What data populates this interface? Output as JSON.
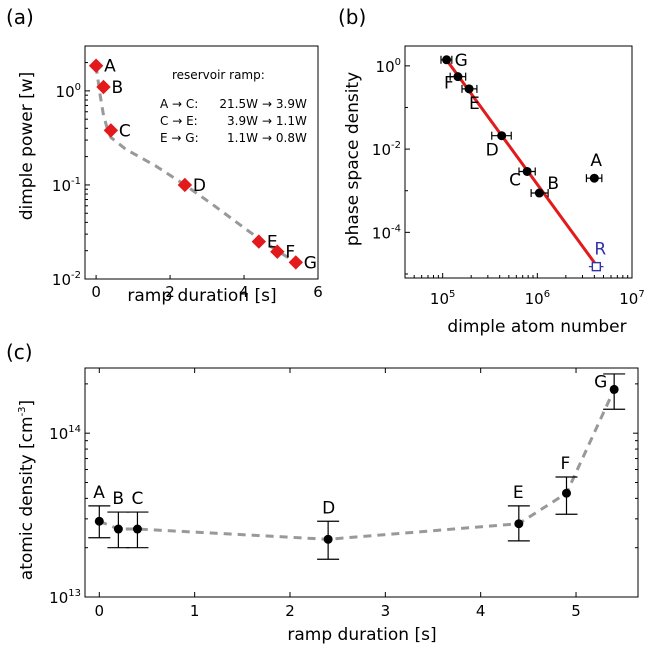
{
  "chart_data": [
    {
      "panel": "(a)",
      "type": "scatter",
      "xlabel": "ramp duration [s]",
      "ylabel": "dimple power [w]",
      "xlim": [
        -0.3,
        6
      ],
      "ylim": [
        0.01,
        3
      ],
      "yscale": "log",
      "xticks": [
        "0",
        "2",
        "4",
        "6"
      ],
      "yticks": [
        {
          "base": "10",
          "exp": "0"
        },
        {
          "base": "10",
          "exp": "-1"
        },
        {
          "base": "10",
          "exp": "-2"
        }
      ],
      "points": [
        {
          "label": "A",
          "x": 0.0,
          "y": 1.85
        },
        {
          "label": "B",
          "x": 0.2,
          "y": 1.1
        },
        {
          "label": "C",
          "x": 0.4,
          "y": 0.38
        },
        {
          "label": "D",
          "x": 2.4,
          "y": 0.1
        },
        {
          "label": "E",
          "x": 4.4,
          "y": 0.025
        },
        {
          "label": "F",
          "x": 4.9,
          "y": 0.0195
        },
        {
          "label": "G",
          "x": 5.4,
          "y": 0.015
        }
      ],
      "fit_curve": [
        [
          0.0,
          1.85
        ],
        [
          0.1,
          0.95
        ],
        [
          0.2,
          0.55
        ],
        [
          0.3,
          0.4
        ],
        [
          0.4,
          0.32
        ],
        [
          0.8,
          0.24
        ],
        [
          1.6,
          0.16
        ],
        [
          2.4,
          0.1
        ],
        [
          3.2,
          0.06
        ],
        [
          4.0,
          0.035
        ],
        [
          4.4,
          0.027
        ],
        [
          4.9,
          0.02
        ],
        [
          5.4,
          0.015
        ]
      ],
      "annotation": {
        "title": "reservoir ramp:",
        "rows": [
          {
            "seg": "A → C:",
            "from": "21.5W",
            "to": "→ 3.9W"
          },
          {
            "seg": "C → E:",
            "from": "3.9W",
            "to": "→ 1.1W"
          },
          {
            "seg": "E → G:",
            "from": "1.1W",
            "to": "→ 0.8W"
          }
        ]
      },
      "marker_color": "#e31a1c",
      "curve_color": "#999999"
    },
    {
      "panel": "(b)",
      "type": "scatter",
      "xlabel": "dimple atom number",
      "ylabel": "phase space density",
      "xscale": "log",
      "yscale": "log",
      "xlim": [
        40000,
        10000000
      ],
      "ylim": [
        8e-06,
        3
      ],
      "xticks": [
        {
          "base": "10",
          "exp": "5"
        },
        {
          "base": "10",
          "exp": "6"
        },
        {
          "base": "10",
          "exp": "7"
        }
      ],
      "yticks": [
        {
          "base": "10",
          "exp": "0"
        },
        {
          "base": "10",
          "exp": "-2"
        },
        {
          "base": "10",
          "exp": "-4"
        }
      ],
      "points": [
        {
          "label": "G",
          "x": 110000,
          "y": 1.4,
          "xerr": [
            96000,
            125000
          ]
        },
        {
          "label": "F",
          "x": 145000,
          "y": 0.55,
          "xerr": [
            120000,
            175000
          ]
        },
        {
          "label": "E",
          "x": 190000,
          "y": 0.28,
          "xerr": [
            160000,
            230000
          ]
        },
        {
          "label": "D",
          "x": 420000,
          "y": 0.021,
          "xerr": [
            330000,
            530000
          ]
        },
        {
          "label": "C",
          "x": 780000,
          "y": 0.0029,
          "xerr": [
            640000,
            950000
          ]
        },
        {
          "label": "B",
          "x": 1050000,
          "y": 0.00088,
          "xerr": [
            860000,
            1300000
          ]
        },
        {
          "label": "A",
          "x": 4000000,
          "y": 0.002,
          "xerr": [
            3300000,
            4800000
          ]
        }
      ],
      "reference_point": {
        "label": "R",
        "x": 4200000,
        "y": 1.5e-05,
        "xerr": [
          3500000,
          5000000
        ]
      },
      "fit_line": [
        [
          105000,
          1.6
        ],
        [
          4300000,
          1.5e-05
        ]
      ],
      "line_color": "#e31a1c",
      "reference_color": "#3333aa"
    },
    {
      "panel": "(c)",
      "type": "line",
      "xlabel": "ramp duration [s]",
      "ylabel": "atomic density [cm",
      "ylabel_exp": "-3",
      "ylabel_end": "]",
      "yscale": "log",
      "xlim": [
        -0.15,
        5.65
      ],
      "ylim": [
        10000000000000,
        250000000000000
      ],
      "xticks": [
        "0",
        "1",
        "2",
        "3",
        "4",
        "5"
      ],
      "yticks": [
        {
          "base": "10",
          "exp": "14"
        },
        {
          "base": "10",
          "exp": "13"
        }
      ],
      "points": [
        {
          "label": "A",
          "x": 0.0,
          "y": 29000000000000,
          "yerr": [
            23000000000000,
            36000000000000
          ]
        },
        {
          "label": "B",
          "x": 0.2,
          "y": 26000000000000,
          "yerr": [
            20000000000000,
            33000000000000
          ]
        },
        {
          "label": "C",
          "x": 0.4,
          "y": 26000000000000,
          "yerr": [
            20000000000000,
            33000000000000
          ]
        },
        {
          "label": "D",
          "x": 2.4,
          "y": 22500000000000,
          "yerr": [
            17000000000000,
            29000000000000
          ]
        },
        {
          "label": "E",
          "x": 4.4,
          "y": 28000000000000,
          "yerr": [
            22000000000000,
            36000000000000
          ]
        },
        {
          "label": "F",
          "x": 4.9,
          "y": 43000000000000,
          "yerr": [
            32000000000000,
            54000000000000
          ]
        },
        {
          "label": "G",
          "x": 5.4,
          "y": 185000000000000,
          "yerr": [
            140000000000000,
            230000000000000
          ]
        }
      ],
      "curve_color": "#999999"
    }
  ]
}
